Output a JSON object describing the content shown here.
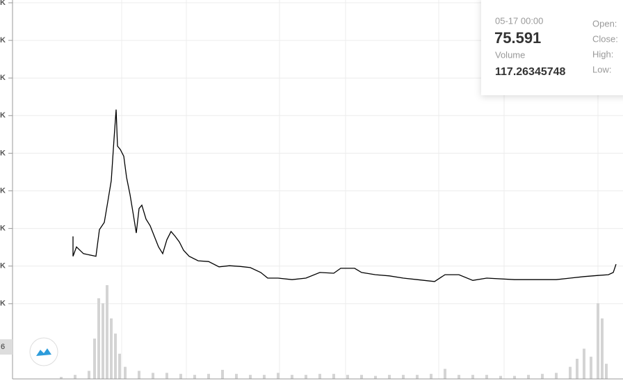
{
  "chart_data": [
    {
      "type": "line",
      "color": "#000000",
      "grid": true,
      "xlim": [
        0,
        878
      ],
      "ylim": [
        -2,
        8
      ],
      "yticks": [
        {
          "value": 0,
          "label": "K"
        },
        {
          "value": 1,
          "label": "K"
        },
        {
          "value": 2,
          "label": "K"
        },
        {
          "value": 3,
          "label": "K"
        },
        {
          "value": 4,
          "label": "K"
        },
        {
          "value": 5,
          "label": "K"
        },
        {
          "value": 6,
          "label": "K"
        },
        {
          "value": 7,
          "label": "K"
        },
        {
          "value": 8,
          "label": "K"
        }
      ],
      "x": [
        87,
        87,
        92,
        102,
        120,
        125,
        132,
        137,
        142,
        146,
        149,
        151,
        155,
        160,
        164,
        169,
        174,
        178,
        182,
        186,
        192,
        198,
        204,
        210,
        216,
        222,
        228,
        234,
        240,
        246,
        254,
        267,
        282,
        297,
        312,
        327,
        342,
        357,
        367,
        382,
        402,
        422,
        442,
        462,
        472,
        492,
        502,
        522,
        542,
        562,
        582,
        607,
        622,
        642,
        662,
        682,
        722,
        762,
        782,
        802,
        822,
        842,
        857,
        864,
        868
      ],
      "values": [
        1.79,
        1.26,
        1.51,
        1.33,
        1.26,
        1.97,
        2.16,
        2.71,
        3.27,
        4.38,
        5.16,
        4.19,
        4.1,
        3.92,
        3.36,
        2.9,
        2.34,
        1.88,
        2.53,
        2.62,
        2.25,
        2.07,
        1.79,
        1.51,
        1.33,
        1.7,
        1.92,
        1.79,
        1.64,
        1.42,
        1.26,
        1.14,
        1.12,
        0.98,
        1.01,
        0.99,
        0.96,
        0.83,
        0.68,
        0.68,
        0.64,
        0.68,
        0.83,
        0.81,
        0.94,
        0.94,
        0.83,
        0.77,
        0.74,
        0.68,
        0.64,
        0.59,
        0.77,
        0.77,
        0.62,
        0.68,
        0.64,
        0.64,
        0.64,
        0.68,
        0.72,
        0.75,
        0.77,
        0.83,
        1.05
      ]
    },
    {
      "type": "bar",
      "color": "#d4d4d4",
      "xlim": [
        0,
        878
      ],
      "ylim": [
        0,
        100
      ],
      "x": [
        70,
        90,
        110,
        118,
        124,
        130,
        136,
        142,
        148,
        154,
        162,
        182,
        202,
        222,
        242,
        262,
        282,
        302,
        322,
        342,
        362,
        382,
        402,
        422,
        442,
        462,
        482,
        502,
        522,
        542,
        562,
        582,
        602,
        622,
        642,
        662,
        682,
        702,
        722,
        742,
        762,
        782,
        802,
        812,
        822,
        832,
        842,
        848,
        854
      ],
      "values": [
        2,
        4,
        8,
        40,
        80,
        75,
        93,
        60,
        45,
        25,
        12,
        8,
        6,
        6,
        5,
        4,
        5,
        9,
        5,
        4,
        4,
        6,
        4,
        4,
        5,
        5,
        4,
        4,
        3,
        4,
        4,
        4,
        5,
        10,
        4,
        4,
        4,
        3,
        3,
        4,
        5,
        6,
        12,
        20,
        30,
        22,
        75,
        60,
        15
      ]
    }
  ],
  "price_label": "6",
  "tooltip": {
    "date": "05-17 00:00",
    "price": "75.591",
    "volume_label": "Volume",
    "volume": "117.26345748",
    "open": "Open:",
    "close": "Close:",
    "high": "High:",
    "low": "Low:"
  }
}
